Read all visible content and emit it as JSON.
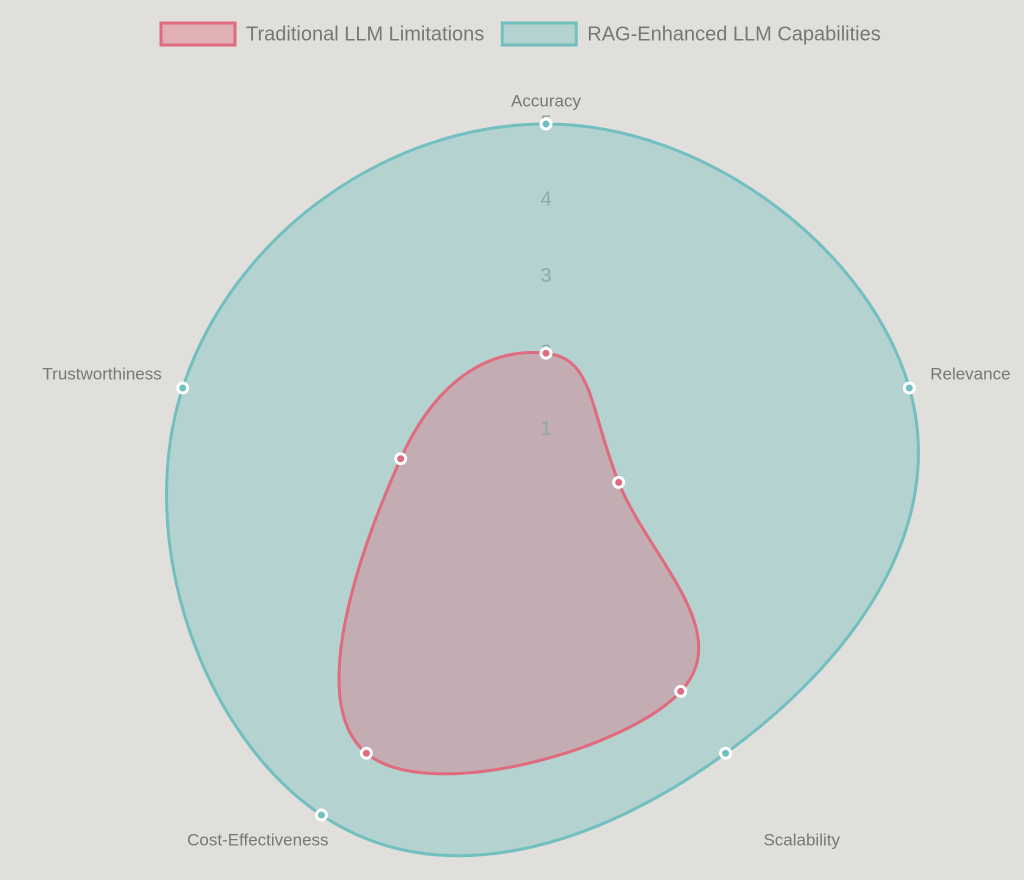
{
  "chart_data": {
    "type": "radar",
    "categories": [
      "Accuracy",
      "Relevance",
      "Scalability",
      "Cost-Effectiveness",
      "Trustworthiness"
    ],
    "series": [
      {
        "name": "Traditional LLM Limitations",
        "color": "#e06a7e",
        "values": [
          2,
          1,
          3,
          4,
          2
        ]
      },
      {
        "name": "RAG-Enhanced LLM Capabilities",
        "color": "#72bfbf",
        "values": [
          5,
          5,
          4,
          5,
          5
        ]
      }
    ],
    "rlim": [
      0,
      5
    ],
    "rticks": [
      1,
      2,
      3,
      4,
      5
    ],
    "grid": false,
    "legend": "top"
  }
}
